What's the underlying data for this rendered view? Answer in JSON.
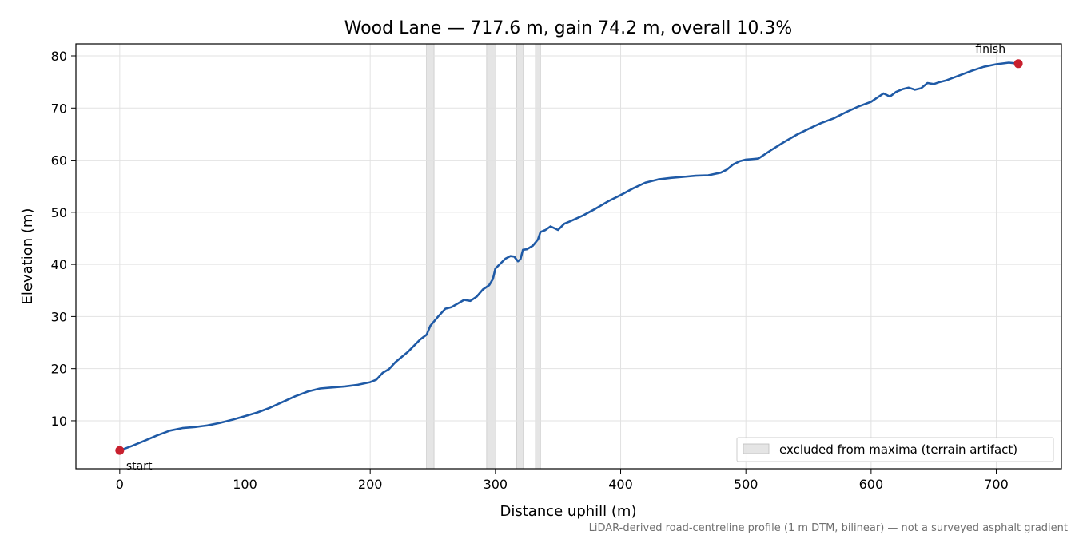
{
  "chart_data": {
    "type": "line",
    "title": "Wood Lane — 717.6 m, gain 74.2 m, overall 10.3%",
    "xlabel": "Distance uphill (m)",
    "ylabel": "Elevation (m)",
    "footnote": "LiDAR-derived road-centreline profile (1 m DTM, bilinear) — not a surveyed asphalt gradient",
    "xlim": [
      -35,
      752
    ],
    "ylim": [
      0.8,
      82.3
    ],
    "x_ticks": [
      0,
      100,
      200,
      300,
      400,
      500,
      600,
      700
    ],
    "y_ticks": [
      10,
      20,
      30,
      40,
      50,
      60,
      70,
      80
    ],
    "grid": true,
    "line_color": "#1f5aa6",
    "marker_color": "#c8202e",
    "band_color": "#bdbdbd",
    "legend_position": "lower-right",
    "legend": [
      {
        "label": "excluded from maxima (terrain artifact)"
      }
    ],
    "excluded_bands": [
      [
        245,
        251
      ],
      [
        293,
        300
      ],
      [
        317,
        322
      ],
      [
        332,
        336
      ]
    ],
    "series": [
      {
        "points": [
          [
            0,
            4.3
          ],
          [
            10,
            5.2
          ],
          [
            20,
            6.2
          ],
          [
            30,
            7.2
          ],
          [
            40,
            8.1
          ],
          [
            50,
            8.6
          ],
          [
            60,
            8.8
          ],
          [
            70,
            9.1
          ],
          [
            80,
            9.6
          ],
          [
            90,
            10.2
          ],
          [
            100,
            10.9
          ],
          [
            110,
            11.6
          ],
          [
            120,
            12.5
          ],
          [
            130,
            13.6
          ],
          [
            140,
            14.7
          ],
          [
            150,
            15.6
          ],
          [
            160,
            16.2
          ],
          [
            170,
            16.4
          ],
          [
            180,
            16.6
          ],
          [
            190,
            16.9
          ],
          [
            200,
            17.4
          ],
          [
            205,
            17.9
          ],
          [
            210,
            19.2
          ],
          [
            215,
            19.9
          ],
          [
            220,
            21.2
          ],
          [
            225,
            22.2
          ],
          [
            230,
            23.2
          ],
          [
            235,
            24.4
          ],
          [
            240,
            25.6
          ],
          [
            245,
            26.5
          ],
          [
            248,
            28.2
          ],
          [
            255,
            30.2
          ],
          [
            260,
            31.5
          ],
          [
            265,
            31.8
          ],
          [
            270,
            32.5
          ],
          [
            275,
            33.2
          ],
          [
            280,
            33.0
          ],
          [
            285,
            33.8
          ],
          [
            290,
            35.2
          ],
          [
            295,
            36.0
          ],
          [
            298,
            37.2
          ],
          [
            300,
            39.2
          ],
          [
            305,
            40.4
          ],
          [
            308,
            41.1
          ],
          [
            312,
            41.6
          ],
          [
            315,
            41.5
          ],
          [
            318,
            40.6
          ],
          [
            320,
            41.0
          ],
          [
            322,
            42.8
          ],
          [
            325,
            42.9
          ],
          [
            330,
            43.6
          ],
          [
            334,
            44.8
          ],
          [
            336,
            46.2
          ],
          [
            340,
            46.6
          ],
          [
            344,
            47.3
          ],
          [
            350,
            46.6
          ],
          [
            355,
            47.8
          ],
          [
            360,
            48.3
          ],
          [
            370,
            49.4
          ],
          [
            380,
            50.7
          ],
          [
            390,
            52.1
          ],
          [
            400,
            53.3
          ],
          [
            410,
            54.6
          ],
          [
            420,
            55.7
          ],
          [
            430,
            56.3
          ],
          [
            440,
            56.6
          ],
          [
            450,
            56.8
          ],
          [
            460,
            57.0
          ],
          [
            470,
            57.1
          ],
          [
            480,
            57.6
          ],
          [
            485,
            58.2
          ],
          [
            490,
            59.2
          ],
          [
            495,
            59.8
          ],
          [
            500,
            60.1
          ],
          [
            505,
            60.2
          ],
          [
            510,
            60.3
          ],
          [
            520,
            61.9
          ],
          [
            530,
            63.4
          ],
          [
            540,
            64.8
          ],
          [
            550,
            66.0
          ],
          [
            560,
            67.1
          ],
          [
            570,
            68.0
          ],
          [
            580,
            69.2
          ],
          [
            590,
            70.3
          ],
          [
            600,
            71.2
          ],
          [
            605,
            72.0
          ],
          [
            610,
            72.8
          ],
          [
            615,
            72.2
          ],
          [
            620,
            73.1
          ],
          [
            625,
            73.6
          ],
          [
            630,
            73.9
          ],
          [
            635,
            73.5
          ],
          [
            640,
            73.8
          ],
          [
            645,
            74.8
          ],
          [
            650,
            74.6
          ],
          [
            655,
            75.0
          ],
          [
            660,
            75.3
          ],
          [
            670,
            76.2
          ],
          [
            680,
            77.1
          ],
          [
            690,
            77.9
          ],
          [
            700,
            78.4
          ],
          [
            710,
            78.7
          ],
          [
            717.6,
            78.5
          ]
        ]
      }
    ],
    "annotations": [
      {
        "label": "start",
        "x": 0,
        "y": 4.3
      },
      {
        "label": "finish",
        "x": 717.6,
        "y": 78.5
      }
    ]
  }
}
